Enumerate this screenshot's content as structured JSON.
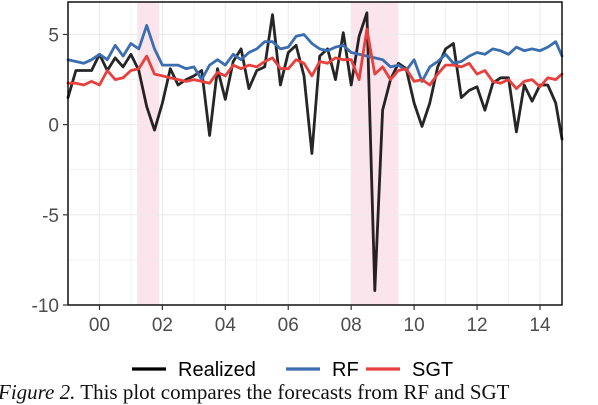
{
  "chart_data": {
    "type": "line",
    "title": "",
    "xlabel": "",
    "ylabel": "",
    "xlim": [
      1999.0,
      2014.7
    ],
    "ylim": [
      -10,
      6.8
    ],
    "x_ticks": [
      2000,
      2002,
      2004,
      2006,
      2008,
      2010,
      2012,
      2014
    ],
    "x_tick_labels": [
      "00",
      "02",
      "04",
      "06",
      "08",
      "10",
      "12",
      "14"
    ],
    "y_ticks": [
      -10,
      -5,
      0,
      5
    ],
    "y_tick_labels": [
      "-10",
      "-5",
      "0",
      "5"
    ],
    "grid": true,
    "legend_position": "bottom",
    "shaded_periods": [
      [
        2001.2,
        2001.9
      ],
      [
        2008.0,
        2009.5
      ]
    ],
    "shade_color": "#fce4ec",
    "x": [
      1999.0,
      1999.25,
      1999.5,
      1999.75,
      2000.0,
      2000.25,
      2000.5,
      2000.75,
      2001.0,
      2001.25,
      2001.5,
      2001.75,
      2002.0,
      2002.25,
      2002.5,
      2002.75,
      2003.0,
      2003.25,
      2003.5,
      2003.75,
      2004.0,
      2004.25,
      2004.5,
      2004.75,
      2005.0,
      2005.25,
      2005.5,
      2005.75,
      2006.0,
      2006.25,
      2006.5,
      2006.75,
      2007.0,
      2007.25,
      2007.5,
      2007.75,
      2008.0,
      2008.25,
      2008.5,
      2008.75,
      2009.0,
      2009.25,
      2009.5,
      2009.75,
      2010.0,
      2010.25,
      2010.5,
      2010.75,
      2011.0,
      2011.25,
      2011.5,
      2011.75,
      2012.0,
      2012.25,
      2012.5,
      2012.75,
      2013.0,
      2013.25,
      2013.5,
      2013.75,
      2014.0,
      2014.25,
      2014.5,
      2014.7
    ],
    "series": [
      {
        "name": "Realized",
        "color": "#000000",
        "values": [
          1.5,
          3.0,
          3.0,
          3.0,
          3.9,
          3.0,
          3.7,
          3.2,
          3.9,
          3.0,
          1.0,
          -0.3,
          1.2,
          3.1,
          2.2,
          2.5,
          2.7,
          3.0,
          -0.6,
          3.1,
          1.4,
          3.5,
          4.2,
          2.0,
          3.0,
          3.2,
          6.1,
          2.2,
          4.0,
          4.4,
          2.7,
          -1.6,
          3.8,
          4.2,
          2.5,
          5.1,
          2.2,
          4.9,
          6.2,
          -9.2,
          0.8,
          2.5,
          3.4,
          3.1,
          1.2,
          -0.1,
          1.2,
          3.2,
          4.2,
          4.5,
          1.5,
          1.9,
          2.1,
          0.8,
          2.3,
          2.6,
          2.6,
          -0.4,
          2.2,
          1.3,
          2.2,
          2.2,
          1.2,
          -0.8
        ]
      },
      {
        "name": "RF",
        "color": "#3b6eb1",
        "values": [
          3.6,
          3.5,
          3.4,
          3.6,
          3.9,
          3.6,
          4.4,
          3.8,
          4.5,
          4.2,
          5.5,
          4.2,
          3.3,
          3.3,
          3.3,
          3.1,
          3.2,
          2.5,
          3.3,
          3.6,
          3.3,
          3.9,
          3.6,
          4.0,
          4.2,
          4.6,
          4.6,
          4.2,
          4.3,
          4.9,
          5.0,
          4.5,
          4.2,
          4.1,
          4.3,
          4.4,
          4.0,
          3.9,
          3.8,
          3.7,
          3.6,
          3.2,
          3.3,
          3.0,
          3.6,
          2.4,
          3.2,
          3.5,
          3.9,
          3.4,
          3.5,
          3.8,
          4.0,
          3.9,
          4.2,
          4.1,
          3.9,
          4.3,
          4.1,
          4.2,
          4.1,
          4.3,
          4.6,
          3.8
        ]
      },
      {
        "name": "SGT",
        "color": "#e8403d",
        "values": [
          2.3,
          2.3,
          2.2,
          2.4,
          2.2,
          3.0,
          2.5,
          2.6,
          3.0,
          3.1,
          3.8,
          2.8,
          2.7,
          2.6,
          2.5,
          2.4,
          2.5,
          2.4,
          2.3,
          2.9,
          2.7,
          3.3,
          3.1,
          3.3,
          3.2,
          3.5,
          3.7,
          3.1,
          3.1,
          3.6,
          3.4,
          2.7,
          3.5,
          3.4,
          3.7,
          3.6,
          3.6,
          2.5,
          5.3,
          2.8,
          3.2,
          2.5,
          3.0,
          3.1,
          2.4,
          2.5,
          2.2,
          2.8,
          3.3,
          3.3,
          3.2,
          3.4,
          2.8,
          3.0,
          2.4,
          2.3,
          2.5,
          2.0,
          2.4,
          2.5,
          2.1,
          2.6,
          2.5,
          2.8
        ]
      }
    ]
  },
  "legend": {
    "items": [
      {
        "label": "Realized",
        "color": "#000000"
      },
      {
        "label": "RF",
        "color": "#3b6eb1"
      },
      {
        "label": "SGT",
        "color": "#e8403d"
      }
    ]
  },
  "caption": {
    "figure_label": "Figure 2.",
    "text": " This plot compares the forecasts from RF and SGT"
  }
}
